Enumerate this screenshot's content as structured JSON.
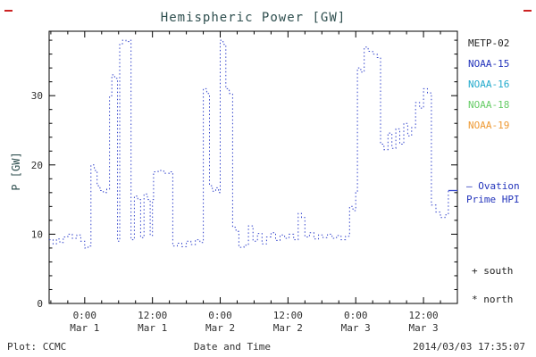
{
  "chart_data": {
    "type": "line",
    "title": "Hemispheric Power [GW]",
    "xlabel": "Date and Time",
    "ylabel": "P [GW]",
    "ylim": [
      0,
      39.3
    ],
    "x_hours_range": [
      -6.3,
      66.0
    ],
    "grid": false,
    "line_style": "dotted-step",
    "x_major_ticks": [
      {
        "t": 0,
        "time": "0:00",
        "date": "Mar 1"
      },
      {
        "t": 12,
        "time": "12:00",
        "date": "Mar 1"
      },
      {
        "t": 24,
        "time": "0:00",
        "date": "Mar 2"
      },
      {
        "t": 36,
        "time": "12:00",
        "date": "Mar 2"
      },
      {
        "t": 48,
        "time": "0:00",
        "date": "Mar 3"
      },
      {
        "t": 60,
        "time": "12:00",
        "date": "Mar 3"
      }
    ],
    "x_minor_step_hours": 3,
    "y_major_ticks": [
      0,
      10,
      20,
      30
    ],
    "y_minor_step": 2,
    "series": [
      {
        "name": "Ovation Prime HPI",
        "color": "#3344cc",
        "points": [
          [
            -6.3,
            9.2
          ],
          [
            -5.6,
            8.6
          ],
          [
            -5.0,
            9.3
          ],
          [
            -4.4,
            8.8
          ],
          [
            -3.8,
            9.6
          ],
          [
            -3.0,
            10.0
          ],
          [
            -2.2,
            9.4
          ],
          [
            -1.4,
            9.9
          ],
          [
            -0.7,
            9.0
          ],
          [
            0.0,
            8.0
          ],
          [
            0.6,
            8.3
          ],
          [
            1.1,
            20.0
          ],
          [
            1.7,
            19.2
          ],
          [
            2.2,
            17.0
          ],
          [
            2.7,
            16.3
          ],
          [
            3.3,
            16.0
          ],
          [
            3.9,
            16.5
          ],
          [
            4.4,
            30.0
          ],
          [
            4.8,
            33.0
          ],
          [
            5.3,
            32.5
          ],
          [
            5.8,
            9.0
          ],
          [
            6.2,
            37.5
          ],
          [
            6.7,
            38.0
          ],
          [
            7.3,
            37.8
          ],
          [
            7.8,
            38.0
          ],
          [
            8.2,
            9.2
          ],
          [
            8.8,
            15.5
          ],
          [
            9.4,
            15.0
          ],
          [
            9.9,
            9.5
          ],
          [
            10.5,
            15.8
          ],
          [
            11.1,
            15.0
          ],
          [
            11.6,
            9.8
          ],
          [
            12.0,
            15.0
          ],
          [
            12.2,
            19.0
          ],
          [
            13.0,
            19.2
          ],
          [
            14.0,
            18.8
          ],
          [
            15.0,
            19.0
          ],
          [
            15.6,
            8.3
          ],
          [
            16.4,
            8.7
          ],
          [
            17.2,
            8.2
          ],
          [
            18.0,
            9.0
          ],
          [
            18.8,
            8.5
          ],
          [
            19.6,
            9.2
          ],
          [
            20.4,
            8.8
          ],
          [
            21.0,
            31.0
          ],
          [
            21.6,
            30.3
          ],
          [
            22.1,
            17.0
          ],
          [
            22.6,
            16.2
          ],
          [
            23.2,
            16.7
          ],
          [
            23.7,
            16.0
          ],
          [
            24.0,
            38.0
          ],
          [
            24.5,
            37.4
          ],
          [
            25.0,
            31.0
          ],
          [
            25.6,
            30.3
          ],
          [
            26.2,
            11.0
          ],
          [
            26.8,
            10.4
          ],
          [
            27.3,
            8.1
          ],
          [
            28.2,
            8.4
          ],
          [
            29.0,
            11.2
          ],
          [
            29.8,
            9.0
          ],
          [
            30.6,
            10.1
          ],
          [
            31.4,
            8.6
          ],
          [
            32.2,
            9.6
          ],
          [
            33.0,
            10.2
          ],
          [
            33.8,
            9.1
          ],
          [
            34.6,
            9.9
          ],
          [
            35.4,
            9.4
          ],
          [
            36.2,
            10.0
          ],
          [
            37.0,
            9.2
          ],
          [
            37.8,
            13.0
          ],
          [
            38.4,
            12.4
          ],
          [
            39.0,
            9.6
          ],
          [
            39.8,
            10.2
          ],
          [
            40.6,
            9.3
          ],
          [
            41.4,
            9.9
          ],
          [
            42.2,
            9.5
          ],
          [
            43.0,
            10.0
          ],
          [
            43.8,
            9.4
          ],
          [
            44.6,
            9.8
          ],
          [
            45.4,
            9.2
          ],
          [
            46.2,
            9.7
          ],
          [
            46.9,
            14.0
          ],
          [
            47.5,
            13.4
          ],
          [
            48.0,
            16.0
          ],
          [
            48.3,
            34.0
          ],
          [
            48.9,
            33.4
          ],
          [
            49.5,
            37.0
          ],
          [
            50.2,
            36.4
          ],
          [
            51.0,
            36.0
          ],
          [
            51.8,
            35.5
          ],
          [
            52.4,
            23.0
          ],
          [
            53.0,
            22.2
          ],
          [
            53.7,
            24.6
          ],
          [
            54.4,
            22.4
          ],
          [
            55.1,
            25.2
          ],
          [
            55.8,
            23.0
          ],
          [
            56.5,
            26.0
          ],
          [
            57.2,
            24.2
          ],
          [
            57.9,
            25.4
          ],
          [
            58.6,
            29.0
          ],
          [
            59.3,
            28.2
          ],
          [
            60.0,
            31.0
          ],
          [
            60.7,
            30.4
          ],
          [
            61.4,
            14.2
          ],
          [
            62.2,
            13.2
          ],
          [
            63.0,
            12.4
          ],
          [
            63.8,
            12.8
          ],
          [
            64.4,
            16.3
          ],
          [
            66.0,
            16.3
          ]
        ]
      }
    ],
    "final_solid_segment": {
      "from_hour": 64.4,
      "to_hour": 66.0,
      "value": 16.3
    }
  },
  "legend": {
    "items": [
      {
        "label": "METP-02",
        "color": "#222222"
      },
      {
        "label": "NOAA-15",
        "color": "#2233bb"
      },
      {
        "label": "NOAA-16",
        "color": "#22aacc"
      },
      {
        "label": "NOAA-18",
        "color": "#66cc66"
      },
      {
        "label": "NOAA-19",
        "color": "#ee9933"
      }
    ],
    "ovation_line1": "— Ovation",
    "ovation_line2": "Prime HPI",
    "ovation_color": "#2233bb"
  },
  "markers": {
    "south": "+ south",
    "north": "* north"
  },
  "footer": {
    "left": "Plot: CCMC",
    "right": "2014/03/03 17:35:07"
  },
  "colors": {
    "line": "#3344cc",
    "frame": "#000000",
    "tick_text": "#303030",
    "title_text": "#2f4f4f",
    "corner_mark": "#cc2222",
    "footer_text": "#303030"
  }
}
